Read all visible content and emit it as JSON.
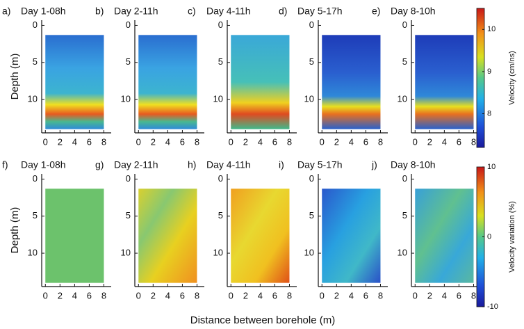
{
  "chart_data": [
    {
      "type": "heatmap",
      "letter": "a)",
      "title": "Day 1-08h",
      "ylabel": "Depth (m)",
      "xlim": [
        -0.5,
        9
      ],
      "ylim": [
        -0.7,
        14.5
      ],
      "xticks": [
        0,
        2,
        4,
        6,
        8
      ],
      "yticks": [
        0,
        5,
        10
      ]
    },
    {
      "type": "heatmap",
      "letter": "b)",
      "title": "Day 2-11h",
      "xlim": [
        -0.5,
        9
      ],
      "ylim": [
        -0.7,
        14.5
      ],
      "xticks": [
        0,
        2,
        4,
        6,
        8
      ],
      "yticks": [
        0,
        5,
        10
      ]
    },
    {
      "type": "heatmap",
      "letter": "c)",
      "title": "Day 4-11h",
      "xlim": [
        -0.5,
        9
      ],
      "ylim": [
        -0.7,
        14.5
      ],
      "xticks": [
        0,
        2,
        4,
        6,
        8
      ],
      "yticks": [
        0,
        5,
        10
      ]
    },
    {
      "type": "heatmap",
      "letter": "d)",
      "title": "Day 5-17h",
      "xlim": [
        -0.5,
        9
      ],
      "ylim": [
        -0.7,
        14.5
      ],
      "xticks": [
        0,
        2,
        4,
        6,
        8
      ],
      "yticks": [
        0,
        5,
        10
      ]
    },
    {
      "type": "heatmap",
      "letter": "e)",
      "title": "Day 8-10h",
      "xlim": [
        -0.5,
        9
      ],
      "ylim": [
        -0.7,
        14.5
      ],
      "xticks": [
        0,
        2,
        4,
        6,
        8
      ],
      "yticks": [
        0,
        5,
        10
      ]
    },
    {
      "type": "heatmap",
      "letter": "f)",
      "title": "Day 1-08h",
      "ylabel": "Depth (m)",
      "xlim": [
        -0.5,
        9
      ],
      "ylim": [
        -0.7,
        14.5
      ],
      "xticks": [
        0,
        2,
        4,
        6,
        8
      ],
      "yticks": [
        0,
        5,
        10
      ]
    },
    {
      "type": "heatmap",
      "letter": "g)",
      "title": "Day 2-11h",
      "xlim": [
        -0.5,
        9
      ],
      "ylim": [
        -0.7,
        14.5
      ],
      "xticks": [
        0,
        2,
        4,
        6,
        8
      ],
      "yticks": [
        0,
        5,
        10
      ]
    },
    {
      "type": "heatmap",
      "letter": "h)",
      "title": "Day 4-11h",
      "xlim": [
        -0.5,
        9
      ],
      "ylim": [
        -0.7,
        14.5
      ],
      "xticks": [
        0,
        2,
        4,
        6,
        8
      ],
      "yticks": [
        0,
        5,
        10
      ]
    },
    {
      "type": "heatmap",
      "letter": "i)",
      "title": "Day 5-17h",
      "xlim": [
        -0.5,
        9
      ],
      "ylim": [
        -0.7,
        14.5
      ],
      "xticks": [
        0,
        2,
        4,
        6,
        8
      ],
      "yticks": [
        0,
        5,
        10
      ]
    },
    {
      "type": "heatmap",
      "letter": "j)",
      "title": "Day 8-10h",
      "xlim": [
        -0.5,
        9
      ],
      "ylim": [
        -0.7,
        14.5
      ],
      "xticks": [
        0,
        2,
        4,
        6,
        8
      ],
      "yticks": [
        0,
        5,
        10
      ]
    }
  ],
  "xlabel": "Distance between borehole (m)",
  "colorbars": [
    {
      "label": "Velocity (cm/ns)",
      "clim": [
        7.2,
        10.5
      ],
      "ticks": [
        8,
        9,
        10
      ]
    },
    {
      "label": "Velocity variation  (%)",
      "clim": [
        -10,
        10
      ],
      "ticks": [
        -10,
        0,
        10
      ]
    }
  ]
}
